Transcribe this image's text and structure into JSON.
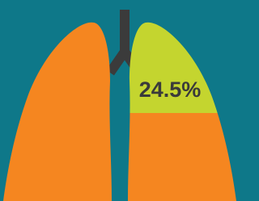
{
  "label": "24.5%"
}
